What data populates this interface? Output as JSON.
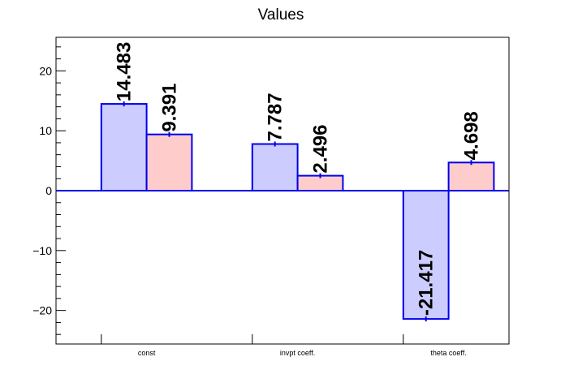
{
  "chart_data": {
    "type": "bar",
    "title": "Values",
    "categories": [
      "const",
      "invpt coeff.",
      "theta coeff."
    ],
    "series": [
      {
        "values": [
          14.483,
          7.787,
          -21.417
        ],
        "labels": [
          "14.483",
          "7.787",
          "-21.417"
        ],
        "fill": "#ccccff",
        "stroke": "#0000ee"
      },
      {
        "values": [
          9.391,
          2.496,
          4.698
        ],
        "labels": [
          "9.391",
          "2.496",
          "4.698"
        ],
        "fill": "#ffcccc",
        "stroke": "#0000ee"
      }
    ],
    "ylim": [
      -25.6,
      25.6
    ],
    "yticks": [
      -20,
      -10,
      0,
      10,
      20
    ],
    "ytick_labels": [
      "−20",
      "−10",
      "0",
      "10",
      "20"
    ],
    "grid": false,
    "xlabel": "",
    "ylabel": ""
  }
}
